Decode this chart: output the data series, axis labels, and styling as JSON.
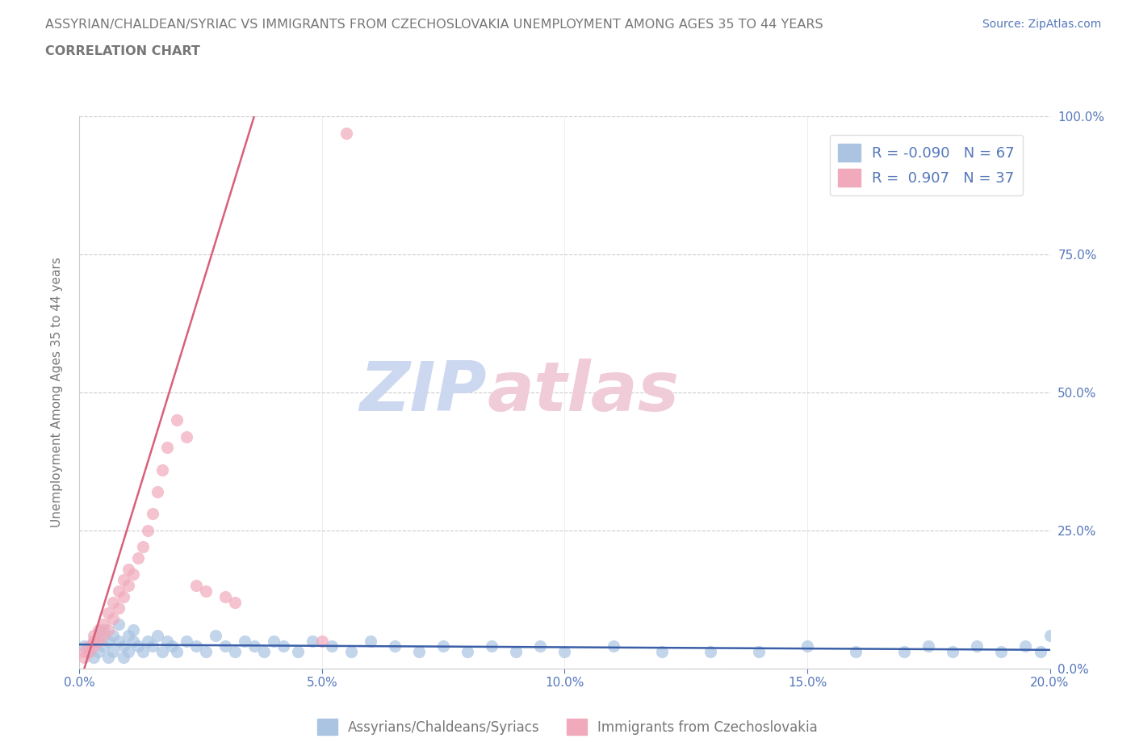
{
  "title_line1": "ASSYRIAN/CHALDEAN/SYRIAC VS IMMIGRANTS FROM CZECHOSLOVAKIA UNEMPLOYMENT AMONG AGES 35 TO 44 YEARS",
  "title_line2": "CORRELATION CHART",
  "source_text": "Source: ZipAtlas.com",
  "ylabel": "Unemployment Among Ages 35 to 44 years",
  "xlim": [
    0.0,
    0.2
  ],
  "ylim": [
    0.0,
    1.0
  ],
  "xtick_labels": [
    "0.0%",
    "5.0%",
    "10.0%",
    "15.0%",
    "20.0%"
  ],
  "xtick_vals": [
    0.0,
    0.05,
    0.1,
    0.15,
    0.2
  ],
  "ytick_labels": [
    "0.0%",
    "25.0%",
    "50.0%",
    "75.0%",
    "100.0%"
  ],
  "ytick_vals": [
    0.0,
    0.25,
    0.5,
    0.75,
    1.0
  ],
  "blue_color": "#aac4e2",
  "pink_color": "#f0aabb",
  "blue_line_color": "#3a5fa8",
  "pink_line_color": "#d8607a",
  "legend_R_blue": "-0.090",
  "legend_N_blue": "67",
  "legend_R_pink": "0.907",
  "legend_N_pink": "37",
  "watermark": "ZIPatlas",
  "watermark_blue": "#d0dff5",
  "watermark_pink": "#f5d0da",
  "blue_scatter_x": [
    0.001,
    0.002,
    0.003,
    0.003,
    0.004,
    0.004,
    0.005,
    0.005,
    0.006,
    0.006,
    0.007,
    0.007,
    0.008,
    0.008,
    0.009,
    0.009,
    0.01,
    0.01,
    0.011,
    0.011,
    0.012,
    0.013,
    0.014,
    0.015,
    0.016,
    0.017,
    0.018,
    0.019,
    0.02,
    0.022,
    0.024,
    0.026,
    0.028,
    0.03,
    0.032,
    0.034,
    0.036,
    0.038,
    0.04,
    0.042,
    0.045,
    0.048,
    0.052,
    0.056,
    0.06,
    0.065,
    0.07,
    0.075,
    0.08,
    0.085,
    0.09,
    0.095,
    0.1,
    0.11,
    0.12,
    0.13,
    0.14,
    0.15,
    0.16,
    0.17,
    0.175,
    0.18,
    0.185,
    0.19,
    0.195,
    0.198,
    0.2
  ],
  "blue_scatter_y": [
    0.04,
    0.03,
    0.05,
    0.02,
    0.06,
    0.03,
    0.04,
    0.07,
    0.05,
    0.02,
    0.06,
    0.03,
    0.05,
    0.08,
    0.04,
    0.02,
    0.06,
    0.03,
    0.05,
    0.07,
    0.04,
    0.03,
    0.05,
    0.04,
    0.06,
    0.03,
    0.05,
    0.04,
    0.03,
    0.05,
    0.04,
    0.03,
    0.06,
    0.04,
    0.03,
    0.05,
    0.04,
    0.03,
    0.05,
    0.04,
    0.03,
    0.05,
    0.04,
    0.03,
    0.05,
    0.04,
    0.03,
    0.04,
    0.03,
    0.04,
    0.03,
    0.04,
    0.03,
    0.04,
    0.03,
    0.03,
    0.03,
    0.04,
    0.03,
    0.03,
    0.04,
    0.03,
    0.04,
    0.03,
    0.04,
    0.03,
    0.06
  ],
  "pink_scatter_x": [
    0.001,
    0.001,
    0.002,
    0.002,
    0.003,
    0.003,
    0.003,
    0.004,
    0.004,
    0.005,
    0.005,
    0.006,
    0.006,
    0.007,
    0.007,
    0.008,
    0.008,
    0.009,
    0.009,
    0.01,
    0.01,
    0.011,
    0.012,
    0.013,
    0.014,
    0.015,
    0.016,
    0.017,
    0.018,
    0.02,
    0.022,
    0.024,
    0.026,
    0.03,
    0.032,
    0.05,
    0.055
  ],
  "pink_scatter_y": [
    0.02,
    0.03,
    0.03,
    0.04,
    0.04,
    0.05,
    0.06,
    0.05,
    0.07,
    0.06,
    0.08,
    0.07,
    0.1,
    0.09,
    0.12,
    0.11,
    0.14,
    0.13,
    0.16,
    0.15,
    0.18,
    0.17,
    0.2,
    0.22,
    0.25,
    0.28,
    0.32,
    0.36,
    0.4,
    0.45,
    0.42,
    0.15,
    0.14,
    0.13,
    0.12,
    0.05,
    0.97
  ],
  "blue_legend_label": "Assyrians/Chaldeans/Syriacs",
  "pink_legend_label": "Immigrants from Czechoslovakia",
  "background_color": "#ffffff",
  "grid_color": "#cccccc",
  "text_color": "#777777",
  "axis_label_color": "#5577bb"
}
